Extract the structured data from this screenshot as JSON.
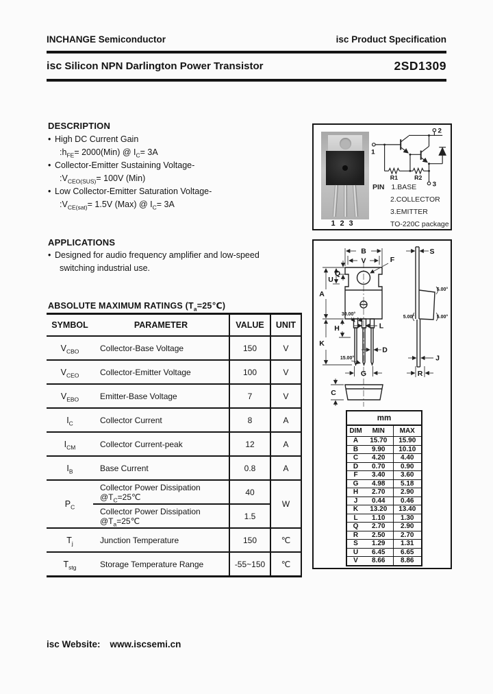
{
  "page": {
    "header_left": "INCHANGE Semiconductor",
    "header_right_prefix": "isc",
    "header_right": "Product Specification",
    "title_prefix": "isc",
    "title": "Silicon NPN Darlington Power Transistor",
    "part_number": "2SD1309",
    "footer_label": "isc Website:",
    "footer_url": "www.iscsemi.cn"
  },
  "description": {
    "heading": "DESCRIPTION",
    "items": [
      {
        "line1": "High DC Current Gain",
        "line2": ":h_{FE}= 2000(Min) @ I_{C}= 3A"
      },
      {
        "line1": "Collector-Emitter Sustaining Voltage-",
        "line2": ":V_{CEO(SUS)}= 100V (Min)"
      },
      {
        "line1": "Low Collector-Emitter Saturation Voltage-",
        "line2": ":V_{CE(sat)}= 1.5V (Max) @ I_{C}= 3A"
      }
    ]
  },
  "applications": {
    "heading": "APPLICATIONS",
    "item_line1": "Designed for audio frequency amplifier and low-speed",
    "item_line2": "switching industrial use."
  },
  "ratings": {
    "heading": "ABSOLUTE MAXIMUM RATINGS (T_{a}=25℃)",
    "columns": [
      "SYMBOL",
      "PARAMETER",
      "VALUE",
      "UNIT"
    ],
    "rows": [
      {
        "symbol": "V_{CBO}",
        "parameter": "Collector-Base Voltage",
        "value": "150",
        "unit": "V"
      },
      {
        "symbol": "V_{CEO}",
        "parameter": "Collector-Emitter Voltage",
        "value": "100",
        "unit": "V"
      },
      {
        "symbol": "V_{EBO}",
        "parameter": "Emitter-Base Voltage",
        "value": "7",
        "unit": "V"
      },
      {
        "symbol": "I_{C}",
        "parameter": "Collector Current",
        "value": "8",
        "unit": "A"
      },
      {
        "symbol": "I_{CM}",
        "parameter": "Collector Current-peak",
        "value": "12",
        "unit": "A"
      },
      {
        "symbol": "I_{B}",
        "parameter": "Base Current",
        "value": "0.8",
        "unit": "A"
      },
      {
        "symbol": "P_{C}",
        "unit": "W",
        "sub_rows": [
          {
            "parameter": "Collector Power Dissipation",
            "condition": "@T_{C}=25℃",
            "value": "40"
          },
          {
            "parameter": "Collector Power Dissipation",
            "condition": "@T_{a}=25℃",
            "value": "1.5"
          }
        ]
      },
      {
        "symbol": "T_{j}",
        "parameter": "Junction Temperature",
        "value": "150",
        "unit": "℃"
      },
      {
        "symbol": "T_{stg}",
        "parameter": "Storage Temperature Range",
        "value": "-55~150",
        "unit": "℃"
      }
    ]
  },
  "package_box": {
    "photo_pin_labels": [
      "1",
      "2",
      "3"
    ],
    "schematic": {
      "pin1": "1",
      "pin2": "2",
      "pin3": "3",
      "r1": "R1",
      "r2": "R2"
    },
    "pin_heading": "PIN",
    "pin_items": [
      "1.BASE",
      "2.COLLECTOR",
      "3.EMITTER"
    ],
    "package_name": "TO-220C package"
  },
  "outline": {
    "labels": {
      "A": "A",
      "B": "B",
      "C": "C",
      "D": "D",
      "F": "F",
      "G": "G",
      "H": "H",
      "J": "J",
      "K": "K",
      "L": "L",
      "Q": "Q",
      "R": "R",
      "S": "S",
      "U": "U",
      "V": "V"
    },
    "angles": {
      "a30": "30.00°",
      "a15": "15.00°",
      "a5_1": "5.00°",
      "a5_2": "5.00°",
      "a5_3": "5.00°"
    },
    "dim_table": {
      "unit_header": "mm",
      "columns": [
        "DIM",
        "MIN",
        "MAX"
      ],
      "rows": [
        [
          "A",
          "15.70",
          "15.90"
        ],
        [
          "B",
          "9.90",
          "10.10"
        ],
        [
          "C",
          "4.20",
          "4.40"
        ],
        [
          "D",
          "0.70",
          "0.90"
        ],
        [
          "F",
          "3.40",
          "3.60"
        ],
        [
          "G",
          "4.98",
          "5.18"
        ],
        [
          "H",
          "2.70",
          "2.90"
        ],
        [
          "J",
          "0.44",
          "0.46"
        ],
        [
          "K",
          "13.20",
          "13.40"
        ],
        [
          "L",
          "1.10",
          "1.30"
        ],
        [
          "Q",
          "2.70",
          "2.90"
        ],
        [
          "R",
          "2.50",
          "2.70"
        ],
        [
          "S",
          "1.29",
          "1.31"
        ],
        [
          "U",
          "6.45",
          "6.65"
        ],
        [
          "V",
          "8.66",
          "8.86"
        ]
      ]
    }
  }
}
